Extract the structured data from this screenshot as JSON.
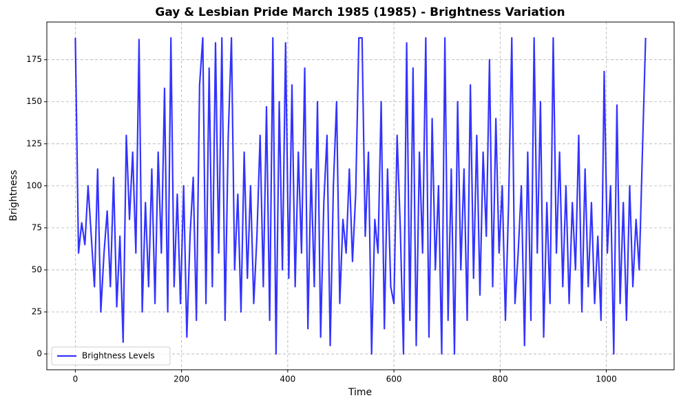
{
  "chart_data": {
    "type": "line",
    "title": "Gay & Lesbian Pride March 1985 (1985) - Brightness Variation",
    "xlabel": "Time",
    "ylabel": "Brightness",
    "x": [
      0,
      6,
      12,
      18,
      24,
      30,
      36,
      42,
      48,
      54,
      60,
      66,
      72,
      78,
      84,
      90,
      96,
      102,
      108,
      114,
      120,
      126,
      132,
      138,
      144,
      150,
      156,
      162,
      168,
      174,
      180,
      186,
      192,
      198,
      204,
      210,
      216,
      222,
      228,
      234,
      240,
      246,
      252,
      258,
      264,
      270,
      276,
      282,
      288,
      294,
      300,
      306,
      312,
      318,
      324,
      330,
      336,
      342,
      348,
      354,
      360,
      366,
      372,
      378,
      384,
      390,
      396,
      402,
      408,
      414,
      420,
      426,
      432,
      438,
      444,
      450,
      456,
      462,
      468,
      474,
      480,
      486,
      492,
      498,
      504,
      510,
      516,
      522,
      528,
      534,
      540,
      546,
      552,
      558,
      564,
      570,
      576,
      582,
      588,
      594,
      600,
      606,
      612,
      618,
      624,
      630,
      636,
      642,
      648,
      654,
      660,
      666,
      672,
      678,
      684,
      690,
      696,
      702,
      708,
      714,
      720,
      726,
      732,
      738,
      744,
      750,
      756,
      762,
      768,
      774,
      780,
      786,
      792,
      798,
      804,
      810,
      816,
      822,
      828,
      834,
      840,
      846,
      852,
      858,
      864,
      870,
      876,
      882,
      888,
      894,
      900,
      906,
      912,
      918,
      924,
      930,
      936,
      942,
      948,
      954,
      960,
      966,
      972,
      978,
      984,
      990,
      996,
      1002,
      1008,
      1014,
      1020,
      1026,
      1032,
      1038,
      1044,
      1050,
      1056,
      1062,
      1068,
      1074
    ],
    "series": [
      {
        "name": "Brightness Levels",
        "color": "#0000ff",
        "values": [
          188,
          60,
          78,
          65,
          100,
          70,
          40,
          110,
          25,
          60,
          85,
          40,
          105,
          28,
          70,
          7,
          130,
          80,
          120,
          60,
          187,
          25,
          90,
          40,
          110,
          30,
          120,
          60,
          158,
          25,
          188,
          40,
          95,
          30,
          100,
          10,
          70,
          105,
          20,
          160,
          188,
          30,
          170,
          40,
          185,
          60,
          188,
          20,
          130,
          188,
          50,
          95,
          25,
          120,
          45,
          100,
          30,
          70,
          130,
          40,
          147,
          20,
          188,
          0,
          150,
          50,
          185,
          45,
          160,
          40,
          120,
          60,
          170,
          15,
          110,
          40,
          150,
          10,
          90,
          130,
          5,
          100,
          150,
          30,
          80,
          60,
          110,
          55,
          95,
          188,
          188,
          70,
          120,
          0,
          80,
          60,
          150,
          15,
          110,
          40,
          30,
          130,
          75,
          0,
          185,
          20,
          170,
          5,
          120,
          60,
          188,
          10,
          140,
          50,
          100,
          0,
          188,
          20,
          110,
          0,
          150,
          50,
          110,
          20,
          160,
          45,
          130,
          35,
          120,
          70,
          175,
          40,
          140,
          60,
          100,
          20,
          90,
          188,
          30,
          60,
          100,
          5,
          120,
          20,
          188,
          60,
          150,
          10,
          90,
          30,
          188,
          60,
          120,
          40,
          100,
          30,
          90,
          50,
          130,
          25,
          110,
          40,
          90,
          30,
          70,
          20,
          168,
          60,
          100,
          0,
          148,
          30,
          90,
          20,
          100,
          40,
          80,
          50,
          120,
          188
        ]
      }
    ],
    "xlim": [
      -53.7,
      1127.7
    ],
    "ylim": [
      -9.4,
      197.4
    ],
    "xticks": [
      0,
      200,
      400,
      600,
      800,
      1000
    ],
    "yticks": [
      0,
      25,
      50,
      75,
      100,
      125,
      150,
      175
    ],
    "grid": true,
    "legend": "lower left"
  }
}
